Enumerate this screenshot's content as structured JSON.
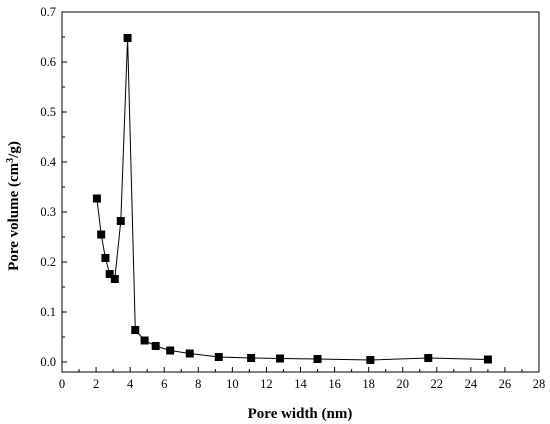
{
  "chart_data": {
    "type": "line",
    "xlabel": "Pore width (nm)",
    "ylabel_main": "Pore volume (cm",
    "ylabel_sup": "3",
    "ylabel_tail": "/g)",
    "xlim": [
      0,
      28
    ],
    "ylim": [
      -0.02,
      0.7
    ],
    "xticks": [
      0,
      2,
      4,
      6,
      8,
      10,
      12,
      14,
      16,
      18,
      20,
      22,
      24,
      26,
      28
    ],
    "yticks": [
      0.0,
      0.1,
      0.2,
      0.3,
      0.4,
      0.5,
      0.6,
      0.7
    ],
    "ytick_labels": [
      "0.0",
      "0.1",
      "0.2",
      "0.3",
      "0.4",
      "0.5",
      "0.6",
      "0.7"
    ],
    "grid": false,
    "legend": "none",
    "marker": "square",
    "color": "#000000",
    "series": [
      {
        "x": [
          2.05,
          2.3,
          2.55,
          2.8,
          3.1,
          3.45,
          3.85,
          4.3,
          4.85,
          5.5,
          6.35,
          7.5,
          9.2,
          11.1,
          12.8,
          15.0,
          18.1,
          21.5,
          25.0
        ],
        "y": [
          0.327,
          0.255,
          0.208,
          0.176,
          0.166,
          0.282,
          0.648,
          0.064,
          0.043,
          0.032,
          0.023,
          0.017,
          0.01,
          0.008,
          0.007,
          0.006,
          0.004,
          0.008,
          0.005
        ]
      }
    ]
  }
}
